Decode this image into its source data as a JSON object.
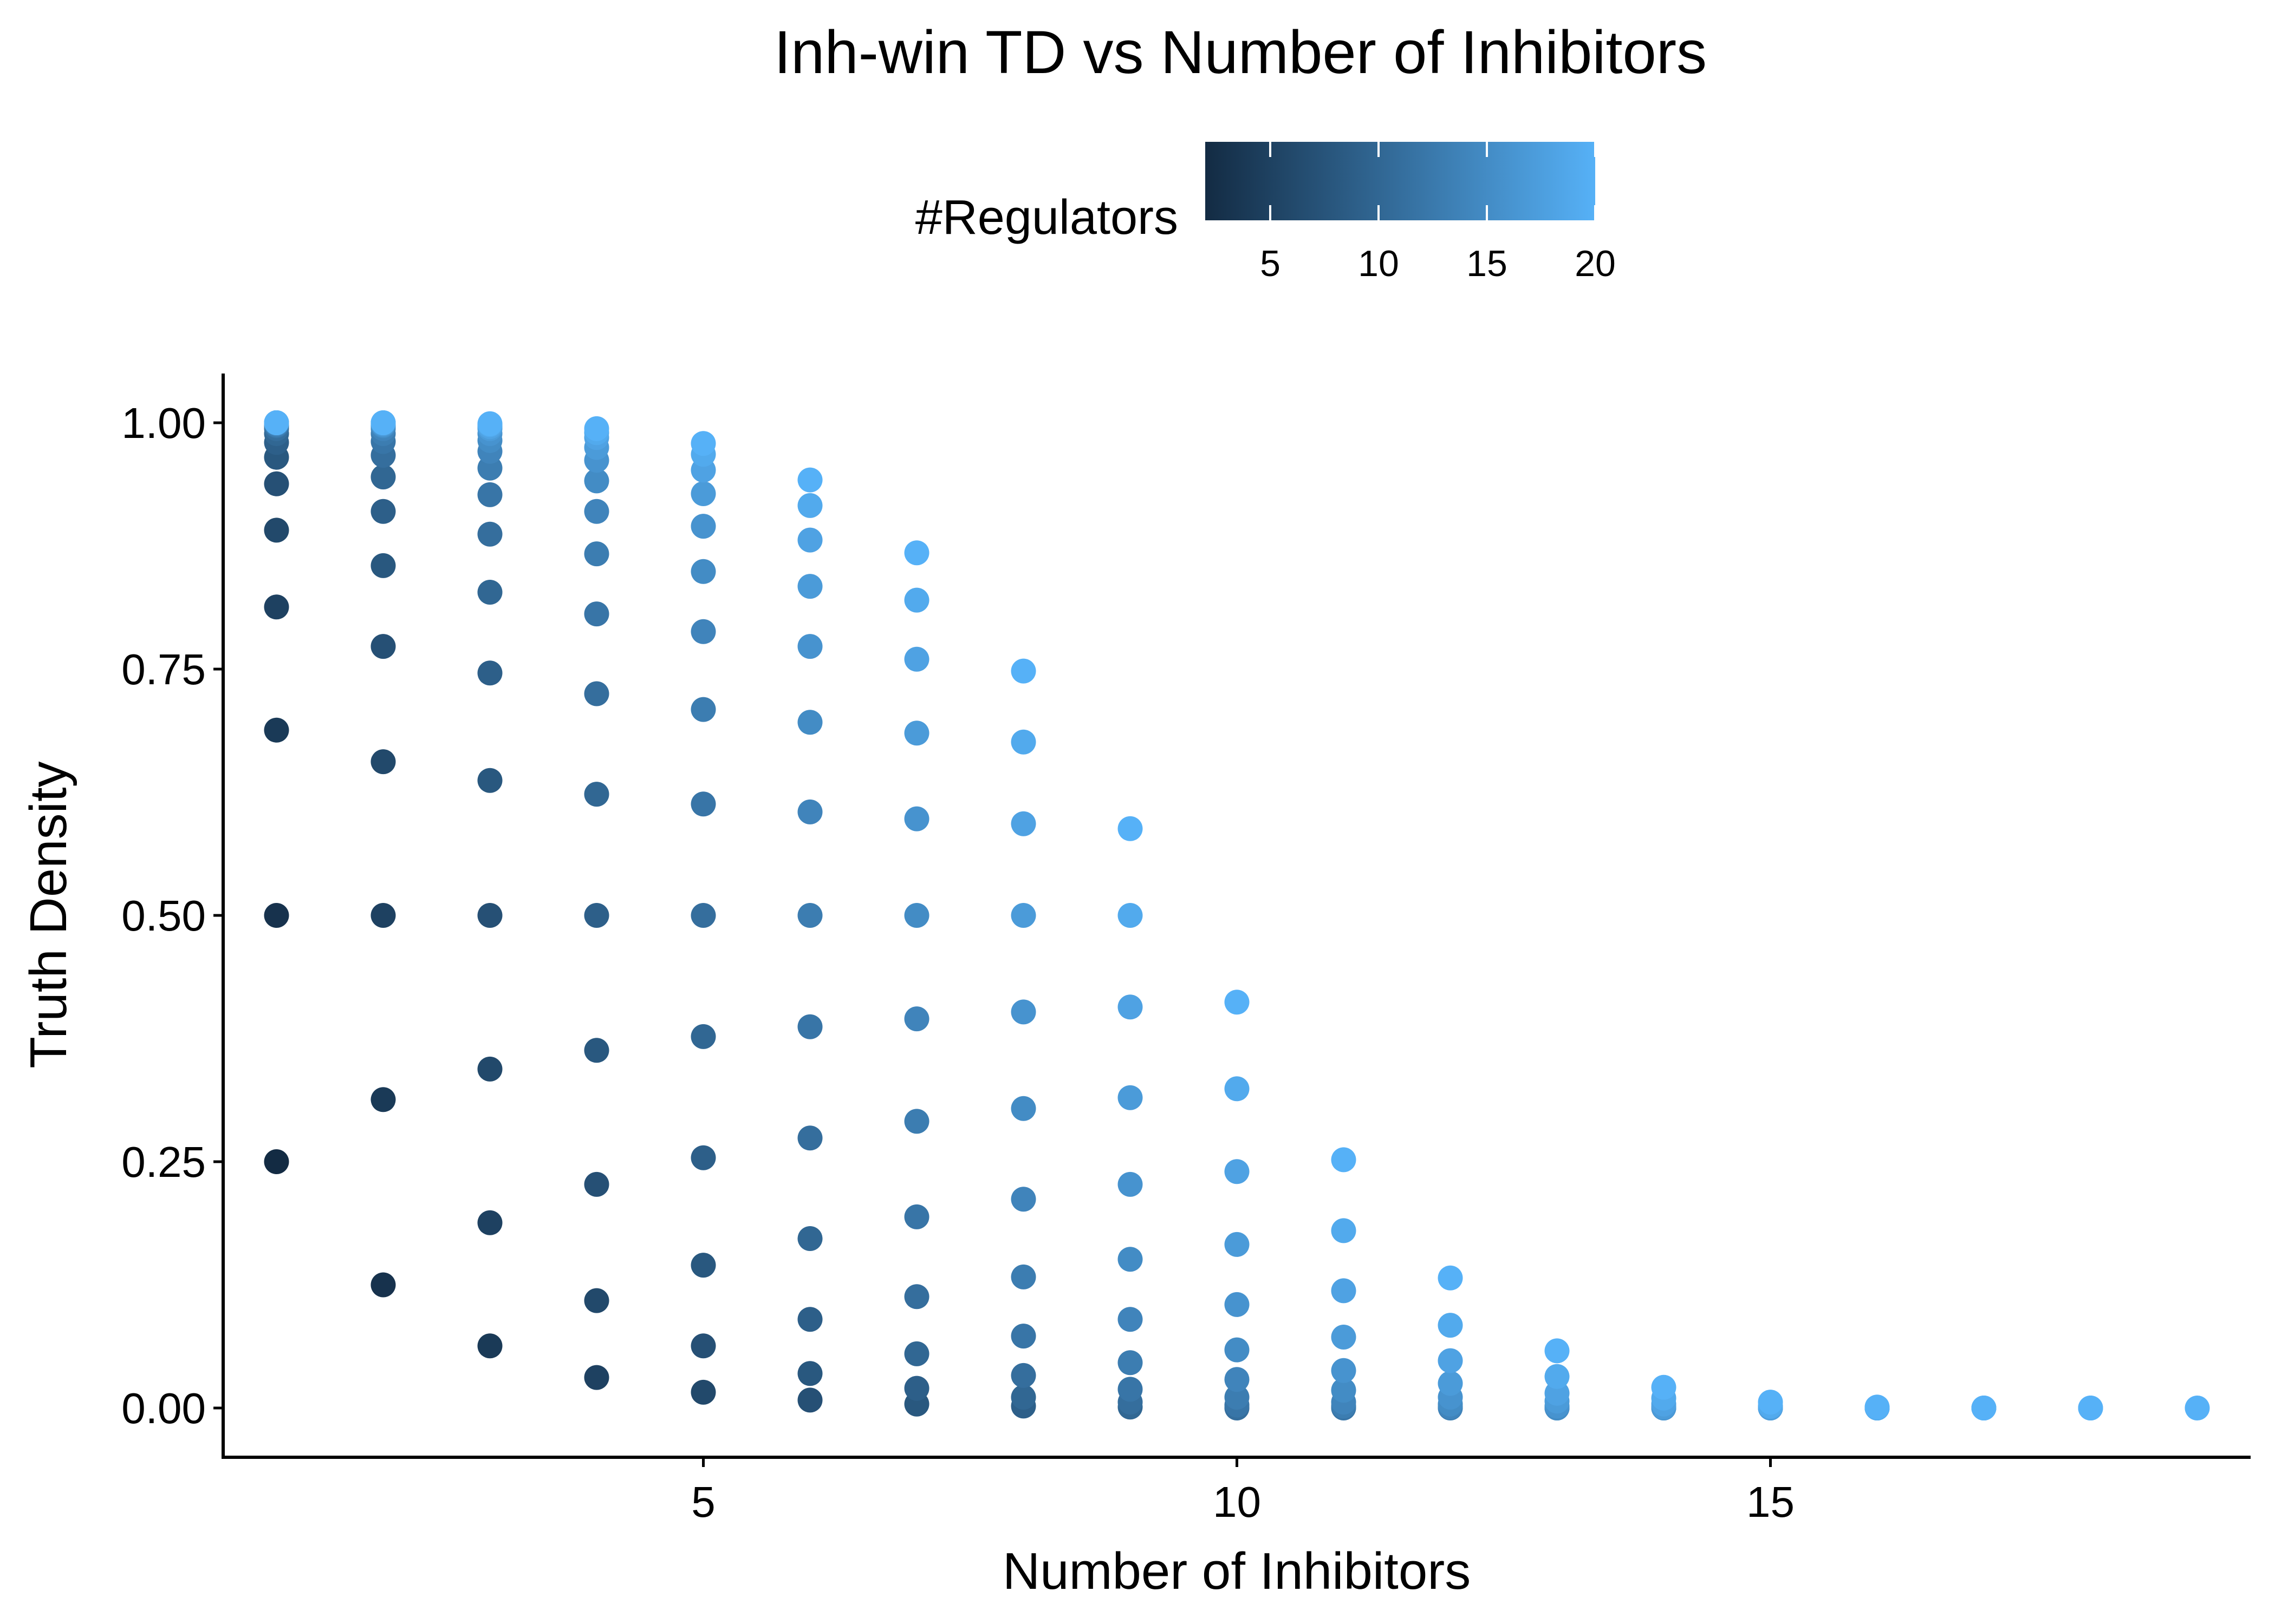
{
  "chart_data": {
    "type": "scatter",
    "title": "Inh-win TD vs Number of Inhibitors",
    "xlabel": "Number of Inhibitors",
    "ylabel": "Truth Density",
    "xlim": [
      0.5,
      19.5
    ],
    "ylim": [
      -0.05,
      1.05
    ],
    "x_ticks": [
      5,
      10,
      15
    ],
    "x_tick_labels": [
      "5",
      "10",
      "15"
    ],
    "y_ticks": [
      0,
      0.25,
      0.5,
      0.75,
      1
    ],
    "y_tick_labels": [
      "0.00",
      "0.25",
      "0.50",
      "0.75",
      "1.00"
    ],
    "grid": false,
    "legend": {
      "title": "#Regulators",
      "type": "colorbar",
      "position": "top",
      "range": [
        2,
        20
      ],
      "ticks": [
        5,
        10,
        15,
        20
      ],
      "tick_labels": [
        "5",
        "10",
        "15",
        "20"
      ],
      "color_low": "#132B43",
      "color_high": "#56B1F7"
    },
    "points": [
      {
        "x": 1,
        "y": 0.25,
        "r": 2
      },
      {
        "x": 1,
        "y": 0.5,
        "r": 3
      },
      {
        "x": 1,
        "y": 0.688,
        "r": 4
      },
      {
        "x": 1,
        "y": 0.813,
        "r": 5
      },
      {
        "x": 1,
        "y": 0.891,
        "r": 6
      },
      {
        "x": 1,
        "y": 0.938,
        "r": 7
      },
      {
        "x": 1,
        "y": 0.965,
        "r": 8
      },
      {
        "x": 1,
        "y": 0.98,
        "r": 9
      },
      {
        "x": 1,
        "y": 0.989,
        "r": 10
      },
      {
        "x": 1,
        "y": 0.994,
        "r": 11
      },
      {
        "x": 1,
        "y": 0.997,
        "r": 12
      },
      {
        "x": 1,
        "y": 0.998,
        "r": 13
      },
      {
        "x": 1,
        "y": 0.999,
        "r": 14
      },
      {
        "x": 1,
        "y": 1.0,
        "r": 15
      },
      {
        "x": 1,
        "y": 1.0,
        "r": 16
      },
      {
        "x": 1,
        "y": 1.0,
        "r": 17
      },
      {
        "x": 1,
        "y": 1.0,
        "r": 18
      },
      {
        "x": 1,
        "y": 1.0,
        "r": 19
      },
      {
        "x": 1,
        "y": 1.0,
        "r": 20
      },
      {
        "x": 2,
        "y": 0.125,
        "r": 3
      },
      {
        "x": 2,
        "y": 0.313,
        "r": 4
      },
      {
        "x": 2,
        "y": 0.5,
        "r": 5
      },
      {
        "x": 2,
        "y": 0.656,
        "r": 6
      },
      {
        "x": 2,
        "y": 0.773,
        "r": 7
      },
      {
        "x": 2,
        "y": 0.855,
        "r": 8
      },
      {
        "x": 2,
        "y": 0.91,
        "r": 9
      },
      {
        "x": 2,
        "y": 0.945,
        "r": 10
      },
      {
        "x": 2,
        "y": 0.967,
        "r": 11
      },
      {
        "x": 2,
        "y": 0.981,
        "r": 12
      },
      {
        "x": 2,
        "y": 0.989,
        "r": 13
      },
      {
        "x": 2,
        "y": 0.994,
        "r": 14
      },
      {
        "x": 2,
        "y": 0.997,
        "r": 15
      },
      {
        "x": 2,
        "y": 0.998,
        "r": 16
      },
      {
        "x": 2,
        "y": 0.999,
        "r": 17
      },
      {
        "x": 2,
        "y": 1.0,
        "r": 18
      },
      {
        "x": 2,
        "y": 1.0,
        "r": 19
      },
      {
        "x": 2,
        "y": 1.0,
        "r": 20
      },
      {
        "x": 3,
        "y": 0.063,
        "r": 4
      },
      {
        "x": 3,
        "y": 0.188,
        "r": 5
      },
      {
        "x": 3,
        "y": 0.344,
        "r": 6
      },
      {
        "x": 3,
        "y": 0.5,
        "r": 7
      },
      {
        "x": 3,
        "y": 0.637,
        "r": 8
      },
      {
        "x": 3,
        "y": 0.746,
        "r": 9
      },
      {
        "x": 3,
        "y": 0.828,
        "r": 10
      },
      {
        "x": 3,
        "y": 0.887,
        "r": 11
      },
      {
        "x": 3,
        "y": 0.927,
        "r": 12
      },
      {
        "x": 3,
        "y": 0.954,
        "r": 13
      },
      {
        "x": 3,
        "y": 0.971,
        "r": 14
      },
      {
        "x": 3,
        "y": 0.982,
        "r": 15
      },
      {
        "x": 3,
        "y": 0.989,
        "r": 16
      },
      {
        "x": 3,
        "y": 0.994,
        "r": 17
      },
      {
        "x": 3,
        "y": 0.996,
        "r": 18
      },
      {
        "x": 3,
        "y": 0.998,
        "r": 19
      },
      {
        "x": 3,
        "y": 0.999,
        "r": 20
      },
      {
        "x": 4,
        "y": 0.031,
        "r": 5
      },
      {
        "x": 4,
        "y": 0.109,
        "r": 6
      },
      {
        "x": 4,
        "y": 0.227,
        "r": 7
      },
      {
        "x": 4,
        "y": 0.363,
        "r": 8
      },
      {
        "x": 4,
        "y": 0.5,
        "r": 9
      },
      {
        "x": 4,
        "y": 0.623,
        "r": 10
      },
      {
        "x": 4,
        "y": 0.725,
        "r": 11
      },
      {
        "x": 4,
        "y": 0.806,
        "r": 12
      },
      {
        "x": 4,
        "y": 0.867,
        "r": 13
      },
      {
        "x": 4,
        "y": 0.91,
        "r": 14
      },
      {
        "x": 4,
        "y": 0.941,
        "r": 15
      },
      {
        "x": 4,
        "y": 0.962,
        "r": 16
      },
      {
        "x": 4,
        "y": 0.975,
        "r": 17
      },
      {
        "x": 4,
        "y": 0.985,
        "r": 18
      },
      {
        "x": 4,
        "y": 0.99,
        "r": 19
      },
      {
        "x": 4,
        "y": 0.994,
        "r": 20
      },
      {
        "x": 5,
        "y": 0.016,
        "r": 6
      },
      {
        "x": 5,
        "y": 0.063,
        "r": 7
      },
      {
        "x": 5,
        "y": 0.145,
        "r": 8
      },
      {
        "x": 5,
        "y": 0.254,
        "r": 9
      },
      {
        "x": 5,
        "y": 0.377,
        "r": 10
      },
      {
        "x": 5,
        "y": 0.5,
        "r": 11
      },
      {
        "x": 5,
        "y": 0.613,
        "r": 12
      },
      {
        "x": 5,
        "y": 0.709,
        "r": 13
      },
      {
        "x": 5,
        "y": 0.788,
        "r": 14
      },
      {
        "x": 5,
        "y": 0.849,
        "r": 15
      },
      {
        "x": 5,
        "y": 0.895,
        "r": 16
      },
      {
        "x": 5,
        "y": 0.928,
        "r": 17
      },
      {
        "x": 5,
        "y": 0.952,
        "r": 18
      },
      {
        "x": 5,
        "y": 0.968,
        "r": 19
      },
      {
        "x": 5,
        "y": 0.979,
        "r": 20
      },
      {
        "x": 6,
        "y": 0.008,
        "r": 7
      },
      {
        "x": 6,
        "y": 0.035,
        "r": 8
      },
      {
        "x": 6,
        "y": 0.09,
        "r": 9
      },
      {
        "x": 6,
        "y": 0.172,
        "r": 10
      },
      {
        "x": 6,
        "y": 0.274,
        "r": 11
      },
      {
        "x": 6,
        "y": 0.387,
        "r": 12
      },
      {
        "x": 6,
        "y": 0.5,
        "r": 13
      },
      {
        "x": 6,
        "y": 0.605,
        "r": 14
      },
      {
        "x": 6,
        "y": 0.696,
        "r": 15
      },
      {
        "x": 6,
        "y": 0.773,
        "r": 16
      },
      {
        "x": 6,
        "y": 0.834,
        "r": 17
      },
      {
        "x": 6,
        "y": 0.881,
        "r": 18
      },
      {
        "x": 6,
        "y": 0.916,
        "r": 19
      },
      {
        "x": 6,
        "y": 0.942,
        "r": 20
      },
      {
        "x": 7,
        "y": 0.004,
        "r": 8
      },
      {
        "x": 7,
        "y": 0.02,
        "r": 9
      },
      {
        "x": 7,
        "y": 0.055,
        "r": 10
      },
      {
        "x": 7,
        "y": 0.113,
        "r": 11
      },
      {
        "x": 7,
        "y": 0.194,
        "r": 12
      },
      {
        "x": 7,
        "y": 0.291,
        "r": 13
      },
      {
        "x": 7,
        "y": 0.395,
        "r": 14
      },
      {
        "x": 7,
        "y": 0.5,
        "r": 15
      },
      {
        "x": 7,
        "y": 0.598,
        "r": 16
      },
      {
        "x": 7,
        "y": 0.685,
        "r": 17
      },
      {
        "x": 7,
        "y": 0.76,
        "r": 18
      },
      {
        "x": 7,
        "y": 0.82,
        "r": 19
      },
      {
        "x": 7,
        "y": 0.868,
        "r": 20
      },
      {
        "x": 8,
        "y": 0.002,
        "r": 9
      },
      {
        "x": 8,
        "y": 0.011,
        "r": 10
      },
      {
        "x": 8,
        "y": 0.033,
        "r": 11
      },
      {
        "x": 8,
        "y": 0.073,
        "r": 12
      },
      {
        "x": 8,
        "y": 0.133,
        "r": 13
      },
      {
        "x": 8,
        "y": 0.212,
        "r": 14
      },
      {
        "x": 8,
        "y": 0.304,
        "r": 15
      },
      {
        "x": 8,
        "y": 0.402,
        "r": 16
      },
      {
        "x": 8,
        "y": 0.5,
        "r": 17
      },
      {
        "x": 8,
        "y": 0.593,
        "r": 18
      },
      {
        "x": 8,
        "y": 0.676,
        "r": 19
      },
      {
        "x": 8,
        "y": 0.748,
        "r": 20
      },
      {
        "x": 9,
        "y": 0.001,
        "r": 10
      },
      {
        "x": 9,
        "y": 0.006,
        "r": 11
      },
      {
        "x": 9,
        "y": 0.019,
        "r": 12
      },
      {
        "x": 9,
        "y": 0.046,
        "r": 13
      },
      {
        "x": 9,
        "y": 0.09,
        "r": 14
      },
      {
        "x": 9,
        "y": 0.151,
        "r": 15
      },
      {
        "x": 9,
        "y": 0.227,
        "r": 16
      },
      {
        "x": 9,
        "y": 0.315,
        "r": 17
      },
      {
        "x": 9,
        "y": 0.407,
        "r": 18
      },
      {
        "x": 9,
        "y": 0.5,
        "r": 19
      },
      {
        "x": 9,
        "y": 0.588,
        "r": 20
      },
      {
        "x": 10,
        "y": 0.0,
        "r": 11
      },
      {
        "x": 10,
        "y": 0.003,
        "r": 12
      },
      {
        "x": 10,
        "y": 0.011,
        "r": 13
      },
      {
        "x": 10,
        "y": 0.029,
        "r": 14
      },
      {
        "x": 10,
        "y": 0.059,
        "r": 15
      },
      {
        "x": 10,
        "y": 0.105,
        "r": 16
      },
      {
        "x": 10,
        "y": 0.166,
        "r": 17
      },
      {
        "x": 10,
        "y": 0.24,
        "r": 18
      },
      {
        "x": 10,
        "y": 0.324,
        "r": 19
      },
      {
        "x": 10,
        "y": 0.412,
        "r": 20
      },
      {
        "x": 11,
        "y": 0.0,
        "r": 12
      },
      {
        "x": 11,
        "y": 0.002,
        "r": 13
      },
      {
        "x": 11,
        "y": 0.006,
        "r": 14
      },
      {
        "x": 11,
        "y": 0.018,
        "r": 15
      },
      {
        "x": 11,
        "y": 0.038,
        "r": 16
      },
      {
        "x": 11,
        "y": 0.072,
        "r": 17
      },
      {
        "x": 11,
        "y": 0.119,
        "r": 18
      },
      {
        "x": 11,
        "y": 0.18,
        "r": 19
      },
      {
        "x": 11,
        "y": 0.252,
        "r": 20
      },
      {
        "x": 12,
        "y": 0.0,
        "r": 13
      },
      {
        "x": 12,
        "y": 0.001,
        "r": 14
      },
      {
        "x": 12,
        "y": 0.004,
        "r": 15
      },
      {
        "x": 12,
        "y": 0.011,
        "r": 16
      },
      {
        "x": 12,
        "y": 0.025,
        "r": 17
      },
      {
        "x": 12,
        "y": 0.048,
        "r": 18
      },
      {
        "x": 12,
        "y": 0.084,
        "r": 19
      },
      {
        "x": 12,
        "y": 0.132,
        "r": 20
      },
      {
        "x": 13,
        "y": 0.0,
        "r": 14
      },
      {
        "x": 13,
        "y": 0.0,
        "r": 15
      },
      {
        "x": 13,
        "y": 0.002,
        "r": 16
      },
      {
        "x": 13,
        "y": 0.007,
        "r": 17
      },
      {
        "x": 13,
        "y": 0.015,
        "r": 18
      },
      {
        "x": 13,
        "y": 0.032,
        "r": 19
      },
      {
        "x": 13,
        "y": 0.058,
        "r": 20
      },
      {
        "x": 14,
        "y": 0.0,
        "r": 15
      },
      {
        "x": 14,
        "y": 0.0,
        "r": 16
      },
      {
        "x": 14,
        "y": 0.001,
        "r": 17
      },
      {
        "x": 14,
        "y": 0.004,
        "r": 18
      },
      {
        "x": 14,
        "y": 0.01,
        "r": 19
      },
      {
        "x": 14,
        "y": 0.021,
        "r": 20
      },
      {
        "x": 15,
        "y": 0.0,
        "r": 16
      },
      {
        "x": 15,
        "y": 0.0,
        "r": 17
      },
      {
        "x": 15,
        "y": 0.001,
        "r": 18
      },
      {
        "x": 15,
        "y": 0.002,
        "r": 19
      },
      {
        "x": 15,
        "y": 0.006,
        "r": 20
      },
      {
        "x": 16,
        "y": 0.0,
        "r": 17
      },
      {
        "x": 16,
        "y": 0.0,
        "r": 18
      },
      {
        "x": 16,
        "y": 0.0,
        "r": 19
      },
      {
        "x": 16,
        "y": 0.001,
        "r": 20
      },
      {
        "x": 17,
        "y": 0.0,
        "r": 18
      },
      {
        "x": 17,
        "y": 0.0,
        "r": 19
      },
      {
        "x": 17,
        "y": 0.0,
        "r": 20
      },
      {
        "x": 18,
        "y": 0.0,
        "r": 19
      },
      {
        "x": 18,
        "y": 0.0,
        "r": 20
      },
      {
        "x": 19,
        "y": 0.0,
        "r": 20
      }
    ]
  }
}
